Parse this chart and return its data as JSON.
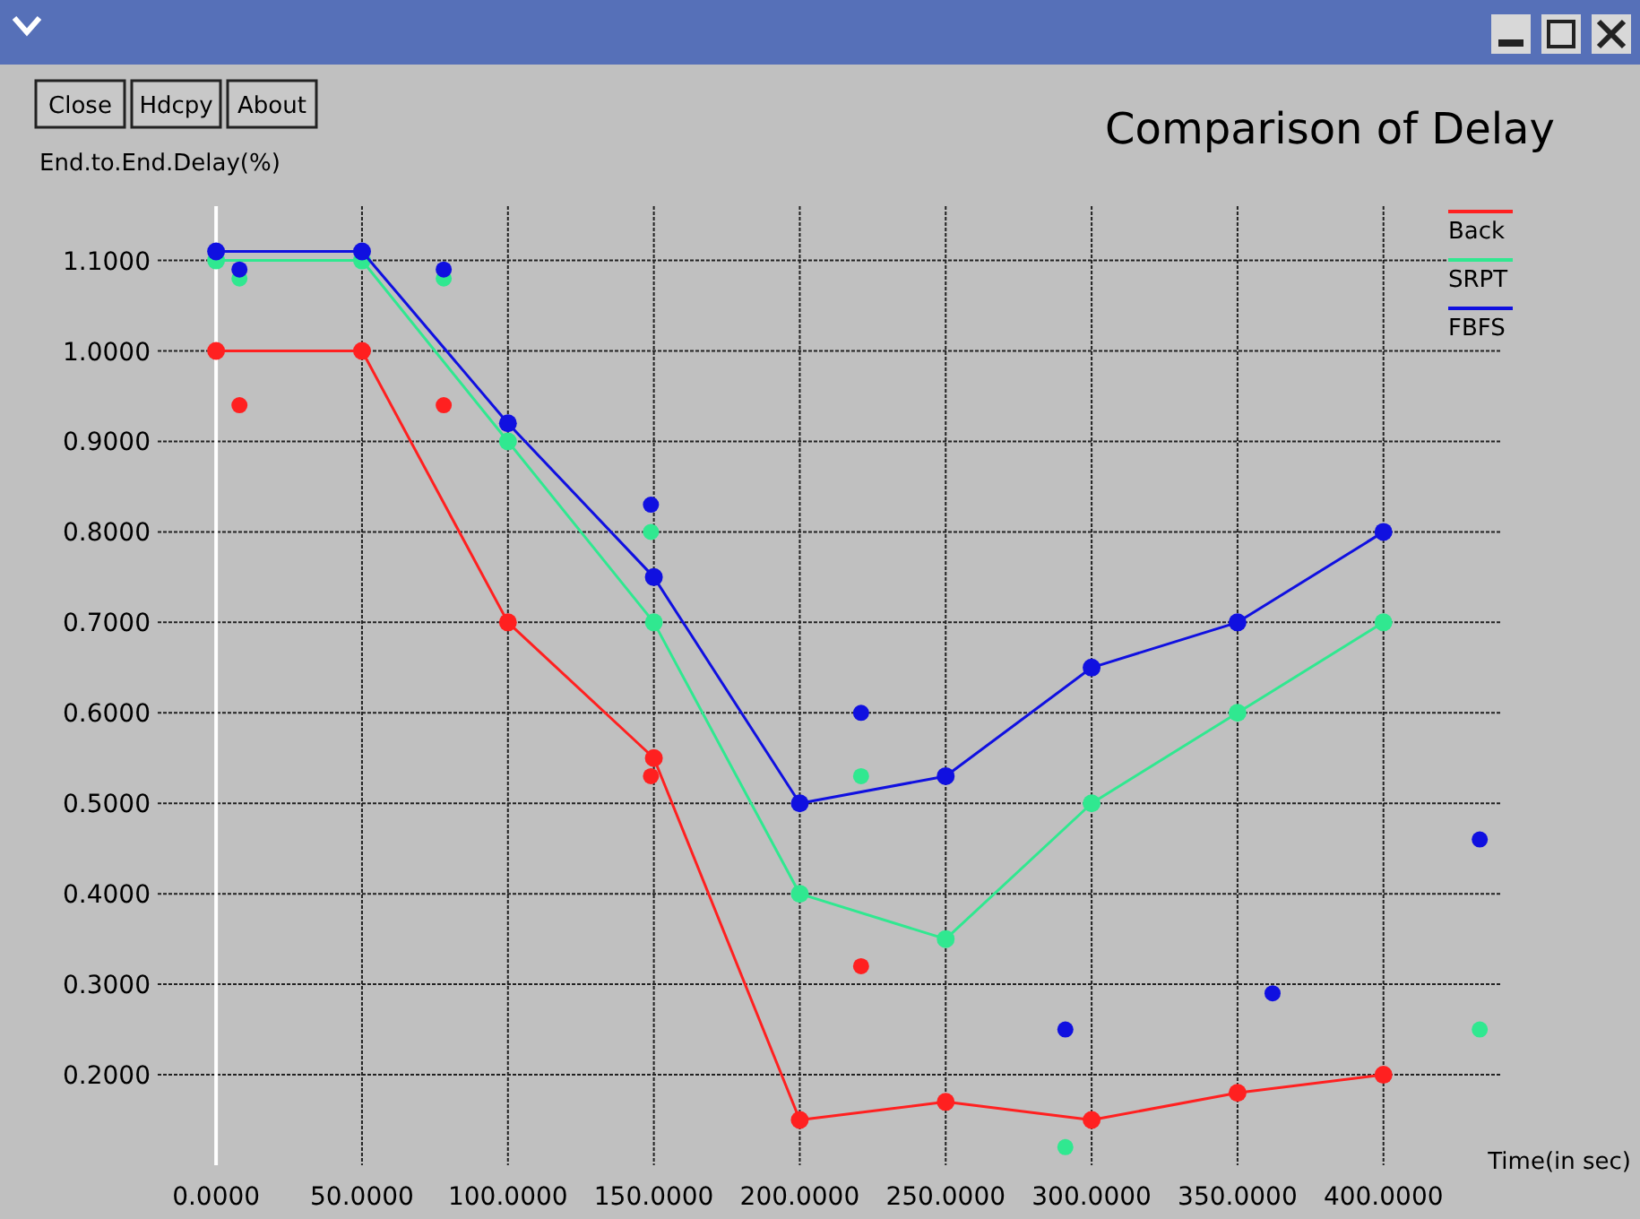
{
  "chart_data": {
    "type": "line",
    "title": "Comparison of Delay",
    "xlabel": "Time(in sec)",
    "ylabel": "End.to.End.Delay(%)",
    "annotations": [
      "Close",
      "Hdcpy",
      "About"
    ],
    "x": [
      0,
      50,
      100,
      150,
      200,
      250,
      300,
      350,
      400
    ],
    "series": [
      {
        "name": "Back",
        "color": "#ff2020",
        "values": [
          1.0,
          1.0,
          0.7,
          0.55,
          0.15,
          0.17,
          0.15,
          0.18,
          0.2
        ]
      },
      {
        "name": "SRPT",
        "color": "#30e890",
        "values": [
          1.1,
          1.1,
          0.9,
          0.7,
          0.4,
          0.35,
          0.5,
          0.6,
          0.7
        ]
      },
      {
        "name": "FBFS",
        "color": "#1010e0",
        "values": [
          1.11,
          1.11,
          0.92,
          0.75,
          0.5,
          0.53,
          0.65,
          0.7,
          0.8
        ]
      },
      {
        "type": "scatter",
        "color": "#ff2020",
        "x": [
          8,
          78,
          149,
          221
        ],
        "values": [
          0.94,
          0.94,
          0.53,
          0.32
        ]
      },
      {
        "type": "scatter",
        "color": "#30e890",
        "x": [
          8,
          78,
          149,
          221,
          291,
          433
        ],
        "values": [
          1.08,
          1.08,
          0.8,
          0.53,
          0.12,
          0.25
        ]
      },
      {
        "type": "scatter",
        "color": "#1010e0",
        "x": [
          8,
          78,
          149,
          221,
          291,
          362,
          433
        ],
        "values": [
          1.09,
          1.09,
          0.83,
          0.6,
          0.25,
          0.29,
          0.46
        ]
      }
    ],
    "xlim": [
      -20,
      440
    ],
    "ylim": [
      0.1,
      1.16
    ],
    "xticks": [
      {
        "value": 0,
        "label": "0.0000"
      },
      {
        "value": 50,
        "label": "50.0000"
      },
      {
        "value": 100,
        "label": "100.0000"
      },
      {
        "value": 150,
        "label": "150.0000"
      },
      {
        "value": 200,
        "label": "200.0000"
      },
      {
        "value": 250,
        "label": "250.0000"
      },
      {
        "value": 300,
        "label": "300.0000"
      },
      {
        "value": 350,
        "label": "350.0000"
      },
      {
        "value": 400,
        "label": "400.0000"
      }
    ],
    "yticks": [
      {
        "value": 0.2,
        "label": "0.2000"
      },
      {
        "value": 0.3,
        "label": "0.3000"
      },
      {
        "value": 0.4,
        "label": "0.4000"
      },
      {
        "value": 0.5,
        "label": "0.5000"
      },
      {
        "value": 0.6,
        "label": "0.6000"
      },
      {
        "value": 0.7,
        "label": "0.7000"
      },
      {
        "value": 0.8,
        "label": "0.8000"
      },
      {
        "value": 0.9,
        "label": "0.9000"
      },
      {
        "value": 1.0,
        "label": "1.0000"
      },
      {
        "value": 1.1,
        "label": "1.1000"
      }
    ],
    "grid": true,
    "legend": "top right",
    "marker": "circle",
    "line_style": "solid"
  }
}
